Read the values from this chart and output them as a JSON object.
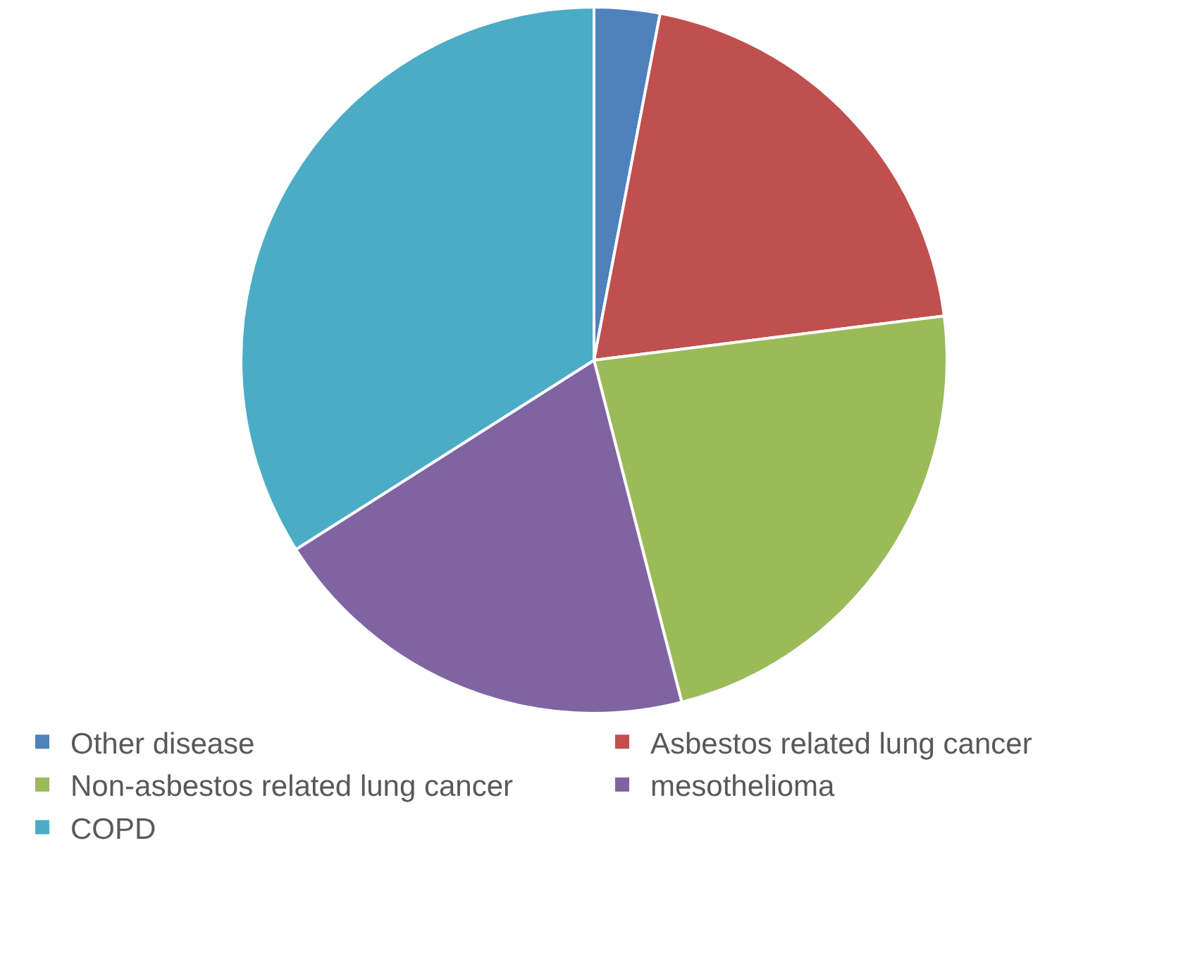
{
  "chart_data": {
    "type": "pie",
    "categories": [
      "Other disease",
      "Asbestos related lung cancer",
      "Non-asbestos related lung cancer",
      "mesothelioma",
      "COPD"
    ],
    "values": [
      3,
      20,
      23,
      20,
      34
    ],
    "colors": [
      "#4f81bd",
      "#c0504d",
      "#9bbb59",
      "#8064a2",
      "#4bacc6"
    ],
    "legend": "bottom"
  }
}
